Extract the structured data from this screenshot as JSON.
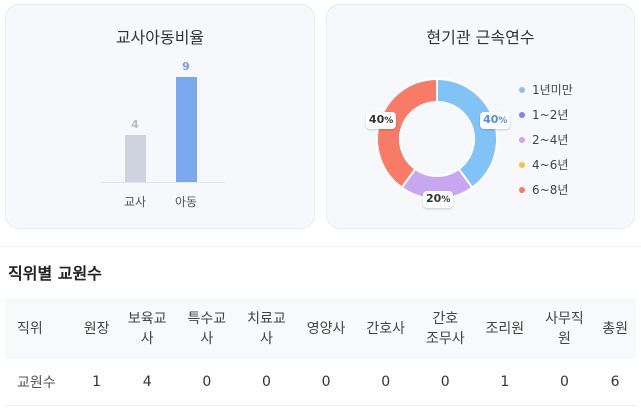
{
  "ratio_card": {
    "title": "교사아동비율"
  },
  "tenure_card": {
    "title": "현기관 근속연수"
  },
  "staff_section": {
    "title": "직위별 교원수"
  },
  "chart_data": [
    {
      "type": "bar",
      "title": "교사아동비율",
      "categories": [
        "교사",
        "아동"
      ],
      "values": [
        4,
        9
      ],
      "colors": [
        "#cfd3e0",
        "#79a8ef"
      ],
      "value_label_colors": [
        "#b8bcc8",
        "#6f9ee8"
      ],
      "ylim": [
        0,
        9
      ]
    },
    {
      "type": "pie",
      "title": "현기관 근속연수",
      "donut": true,
      "labels": [
        "1년미만",
        "1~2년",
        "2~4년",
        "4~6년",
        "6~8년"
      ],
      "values": [
        40,
        0,
        20,
        0,
        40
      ],
      "colors": [
        "#82c3f7",
        "#7b86ec",
        "#c9a7f0",
        "#f7c244",
        "#f77b66"
      ],
      "label_colors": [
        "#4f8ee3",
        "#333333",
        "#333333",
        "#333333",
        "#333333"
      ],
      "value_suffix": "%",
      "legend_position": "right"
    }
  ],
  "staff_table": {
    "headers": [
      "직위",
      "원장",
      "보육교\n사",
      "특수교\n사",
      "치료교\n사",
      "영양사",
      "간호사",
      "간호\n조무사",
      "조리원",
      "사무직\n원",
      "총원"
    ],
    "row_label": "교원수",
    "values": [
      "1",
      "4",
      "0",
      "0",
      "0",
      "0",
      "0",
      "1",
      "0",
      "6"
    ]
  }
}
